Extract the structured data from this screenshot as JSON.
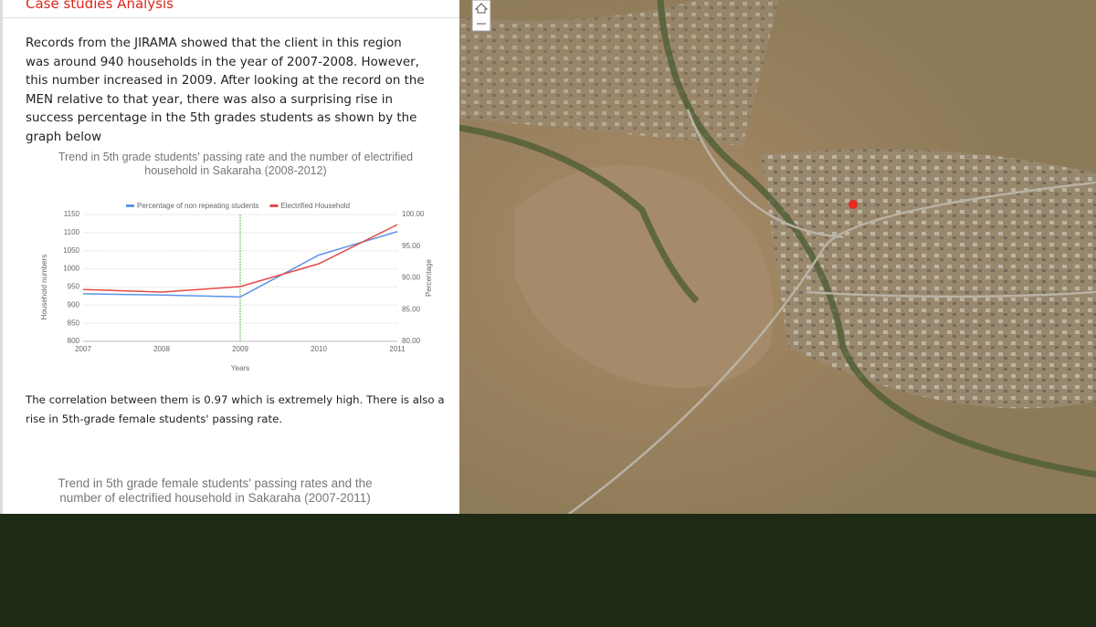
{
  "header": {
    "title": "Case studies Analysis"
  },
  "paragraphs": [
    "Records from the JIRAMA showed that the client in this region was around 940 households in the year of 2007-2008. However, this number increased in 2009. After looking at the record on the MEN relative to that year, there was also a surprising rise in success percentage in the 5th grades students as shown by the graph below",
    "The correlation between them is 0.97 which is extremely high. There is also a rise in 5th-grade female students' passing rate."
  ],
  "chart_data": {
    "type": "line",
    "title": "Trend in 5th grade students' passing rate and the number of  electrified household in Sakaraha (2008-2012)",
    "x_label": "Years",
    "y_label": "Household numbers",
    "y2_label": "Percentage",
    "categories": [
      "2007",
      "2008",
      "2009",
      "2010",
      "2011"
    ],
    "series": [
      {
        "name": "Percentage of non repeating students",
        "color": "#5b93e8",
        "axis": "y2",
        "values": [
          87.5,
          87.3,
          87.0,
          93.6,
          97.3
        ]
      },
      {
        "name": "Electrified Household",
        "color": "#e64a45",
        "values": [
          943,
          936,
          951,
          1014,
          1122
        ]
      }
    ],
    "ylim": [
      800,
      1150
    ],
    "yticks": [
      800,
      850,
      900,
      950,
      1000,
      1050,
      1100,
      1150
    ],
    "y2lim": [
      80,
      100
    ],
    "y2ticks": [
      {
        "value": 80,
        "label": "80.00"
      },
      {
        "value": 85,
        "label": "85.00"
      },
      {
        "value": 90,
        "label": "90.00"
      },
      {
        "value": 95,
        "label": "95.00"
      },
      {
        "value": 100,
        "label": "100.00"
      }
    ],
    "grid": true,
    "legend": "top"
  },
  "next_chart_title": "Trend in 5th grade female students' passing rates and the number of electrified household in Sakaraha (2007-2011)"
}
